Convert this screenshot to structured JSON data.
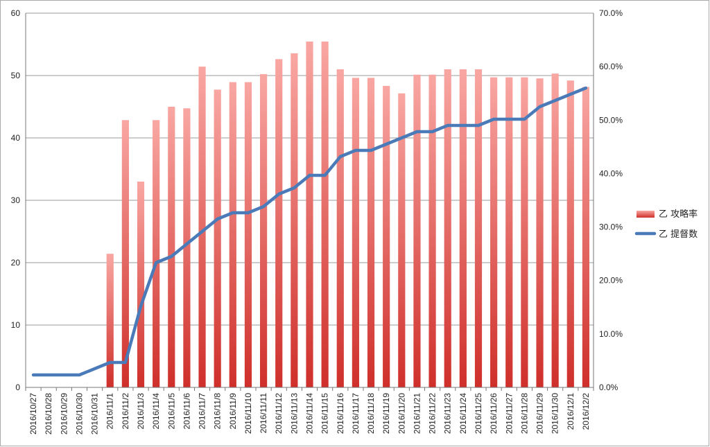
{
  "chart_data": {
    "type": "bar+line",
    "title": "",
    "categories": [
      "2016/10/27",
      "2016/10/28",
      "2016/10/29",
      "2016/10/30",
      "2016/10/31",
      "2016/11/1",
      "2016/11/2",
      "2016/11/3",
      "2016/11/4",
      "2016/11/5",
      "2016/11/6",
      "2016/11/7",
      "2016/11/8",
      "2016/11/9",
      "2016/11/10",
      "2016/11/11",
      "2016/11/12",
      "2016/11/13",
      "2016/11/14",
      "2016/11/15",
      "2016/11/16",
      "2016/11/17",
      "2016/11/18",
      "2016/11/19",
      "2016/11/20",
      "2016/11/21",
      "2016/11/22",
      "2016/11/23",
      "2016/11/24",
      "2016/11/25",
      "2016/11/26",
      "2016/11/27",
      "2016/11/28",
      "2016/11/29",
      "2016/11/30",
      "2016/12/1",
      "2016/12/2"
    ],
    "series": [
      {
        "name": "乙 攻略率",
        "type": "bar",
        "axis": "right",
        "color": "#d9403a",
        "values": [
          0,
          0,
          0,
          0,
          0,
          25.0,
          50.0,
          38.5,
          50.0,
          52.5,
          52.2,
          60.0,
          55.7,
          57.1,
          57.1,
          58.6,
          61.4,
          62.5,
          64.7,
          64.7,
          59.5,
          57.9,
          57.9,
          56.4,
          55.0,
          58.5,
          58.5,
          59.5,
          59.5,
          59.5,
          58.0,
          58.0,
          58.0,
          57.8,
          58.7,
          57.4,
          56.2
        ]
      },
      {
        "name": "乙 提督数",
        "type": "line",
        "axis": "left",
        "color": "#4a7ab8",
        "values": [
          2,
          2,
          2,
          2,
          3,
          4,
          4,
          13,
          20,
          21,
          23,
          25,
          27,
          28,
          28,
          29,
          31,
          32,
          34,
          34,
          37,
          38,
          38,
          39,
          40,
          41,
          41,
          42,
          42,
          42,
          43,
          43,
          43,
          45,
          46,
          47,
          48
        ]
      }
    ],
    "y_left": {
      "min": 0,
      "max": 60,
      "ticks": [
        "0",
        "10",
        "20",
        "30",
        "40",
        "50",
        "60"
      ]
    },
    "y_right": {
      "min": 0,
      "max": 70,
      "ticks": [
        "0.0%",
        "10.0%",
        "20.0%",
        "30.0%",
        "40.0%",
        "50.0%",
        "60.0%",
        "70.0%"
      ]
    },
    "grid": true,
    "legend": "right"
  }
}
